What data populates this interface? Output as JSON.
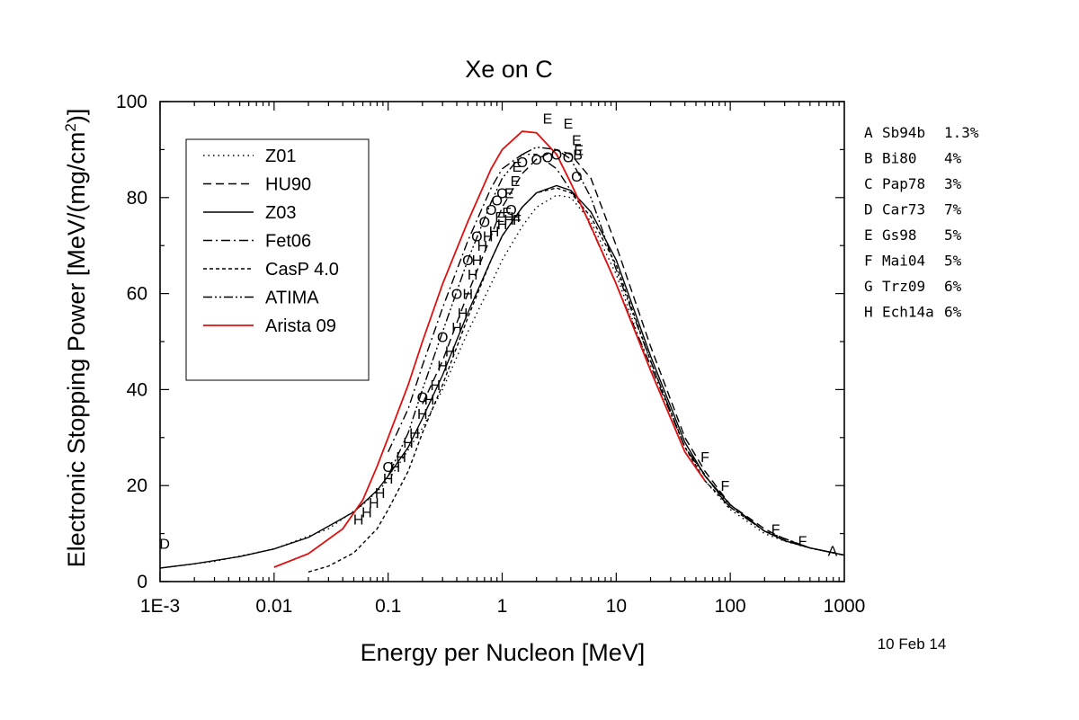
{
  "chart_data": {
    "type": "line",
    "title": "Xe on C",
    "xlabel": "Energy per Nucleon [MeV]",
    "ylabel_main": "Electronic Stopping Power [MeV/(mg/cm",
    "ylabel_sup": "2",
    "ylabel_end": ")]",
    "x_scale": "log",
    "xlim": [
      0.001,
      1000
    ],
    "ylim": [
      0,
      100
    ],
    "x_ticks": [
      {
        "value": 0.001,
        "label": "1E-3"
      },
      {
        "value": 0.01,
        "label": "0.01"
      },
      {
        "value": 0.1,
        "label": "0.1"
      },
      {
        "value": 1,
        "label": "1"
      },
      {
        "value": 10,
        "label": "10"
      },
      {
        "value": 100,
        "label": "100"
      },
      {
        "value": 1000,
        "label": "1000"
      }
    ],
    "y_ticks": [
      {
        "value": 0,
        "label": "0"
      },
      {
        "value": 20,
        "label": "20"
      },
      {
        "value": 40,
        "label": "40"
      },
      {
        "value": 60,
        "label": "60"
      },
      {
        "value": 80,
        "label": "80"
      },
      {
        "value": 100,
        "label": "100"
      }
    ],
    "legend_position": "top-left",
    "series": [
      {
        "name": "Z01",
        "style": "dotted",
        "color": "#000000",
        "points": [
          [
            0.001,
            2.8
          ],
          [
            0.003,
            4.2
          ],
          [
            0.01,
            6.8
          ],
          [
            0.03,
            11
          ],
          [
            0.06,
            16
          ],
          [
            0.1,
            21
          ],
          [
            0.2,
            32
          ],
          [
            0.3,
            40
          ],
          [
            0.5,
            52
          ],
          [
            0.8,
            62
          ],
          [
            1,
            67
          ],
          [
            1.5,
            74
          ],
          [
            2,
            78
          ],
          [
            3,
            80.5
          ],
          [
            4,
            80
          ],
          [
            6,
            75
          ],
          [
            10,
            64
          ],
          [
            20,
            44
          ],
          [
            40,
            27
          ],
          [
            60,
            21
          ],
          [
            100,
            15
          ],
          [
            200,
            10
          ],
          [
            300,
            8.4
          ],
          [
            500,
            7
          ],
          [
            1000,
            5.5
          ]
        ]
      },
      {
        "name": "HU90",
        "style": "dashed",
        "color": "#000000",
        "points": [
          [
            0.2,
            37
          ],
          [
            0.3,
            46
          ],
          [
            0.5,
            60
          ],
          [
            0.8,
            72
          ],
          [
            1,
            78
          ],
          [
            1.5,
            85
          ],
          [
            2,
            88
          ],
          [
            3,
            90
          ],
          [
            4,
            89
          ],
          [
            6,
            84
          ],
          [
            10,
            70
          ],
          [
            20,
            49
          ],
          [
            40,
            30
          ],
          [
            60,
            23
          ],
          [
            100,
            16
          ],
          [
            200,
            11
          ],
          [
            300,
            8.8
          ],
          [
            500,
            7
          ],
          [
            1000,
            5.5
          ]
        ]
      },
      {
        "name": "Z03",
        "style": "solid",
        "color": "#000000",
        "points": [
          [
            0.001,
            2.8
          ],
          [
            0.002,
            3.7
          ],
          [
            0.005,
            5.2
          ],
          [
            0.01,
            6.8
          ],
          [
            0.02,
            9.2
          ],
          [
            0.05,
            14.5
          ],
          [
            0.08,
            19
          ],
          [
            0.1,
            22
          ],
          [
            0.15,
            28
          ],
          [
            0.2,
            34
          ],
          [
            0.3,
            43
          ],
          [
            0.5,
            56
          ],
          [
            0.8,
            67
          ],
          [
            1,
            72
          ],
          [
            1.5,
            78
          ],
          [
            2,
            81
          ],
          [
            3,
            82.5
          ],
          [
            4,
            81.5
          ],
          [
            6,
            77
          ],
          [
            10,
            67
          ],
          [
            20,
            47
          ],
          [
            40,
            29
          ],
          [
            60,
            22
          ],
          [
            100,
            16
          ],
          [
            200,
            10.5
          ],
          [
            300,
            8.5
          ],
          [
            500,
            7
          ],
          [
            1000,
            5.5
          ]
        ]
      },
      {
        "name": "Fet06",
        "style": "dashdot",
        "color": "#000000",
        "points": [
          [
            0.1,
            27
          ],
          [
            0.15,
            36
          ],
          [
            0.2,
            45
          ],
          [
            0.3,
            57
          ],
          [
            0.5,
            71
          ],
          [
            0.8,
            82
          ],
          [
            1,
            86
          ],
          [
            1.5,
            89
          ],
          [
            2,
            89
          ],
          [
            3,
            86
          ],
          [
            5,
            78
          ],
          [
            10,
            62
          ],
          [
            20,
            45
          ],
          [
            40,
            28
          ],
          [
            100,
            15
          ]
        ]
      },
      {
        "name": "CasP 4.0",
        "style": "shortdash",
        "color": "#000000",
        "points": [
          [
            0.02,
            2
          ],
          [
            0.03,
            3.2
          ],
          [
            0.05,
            6
          ],
          [
            0.08,
            11
          ],
          [
            0.1,
            15
          ],
          [
            0.15,
            23
          ],
          [
            0.2,
            31
          ],
          [
            0.3,
            41
          ],
          [
            0.5,
            55
          ],
          [
            0.8,
            67
          ],
          [
            1,
            72
          ],
          [
            1.5,
            78
          ],
          [
            2,
            81
          ],
          [
            3,
            82
          ],
          [
            4,
            81
          ],
          [
            6,
            76
          ],
          [
            10,
            66
          ],
          [
            20,
            46
          ],
          [
            40,
            28
          ],
          [
            60,
            21
          ],
          [
            100,
            15.5
          ],
          [
            200,
            10.5
          ],
          [
            500,
            7
          ],
          [
            1000,
            5.5
          ]
        ]
      },
      {
        "name": "ATIMA",
        "style": "dashdotdot",
        "color": "#000000",
        "points": [
          [
            0.1,
            22
          ],
          [
            0.15,
            31
          ],
          [
            0.2,
            40
          ],
          [
            0.3,
            52
          ],
          [
            0.5,
            67
          ],
          [
            0.8,
            79
          ],
          [
            1,
            84
          ],
          [
            1.5,
            89
          ],
          [
            2,
            90.5
          ],
          [
            3,
            90
          ],
          [
            4,
            88
          ],
          [
            6,
            80
          ],
          [
            10,
            65
          ],
          [
            20,
            46
          ],
          [
            40,
            28
          ],
          [
            60,
            22
          ],
          [
            100,
            15.5
          ],
          [
            200,
            10.5
          ],
          [
            500,
            7
          ],
          [
            1000,
            5.5
          ]
        ]
      },
      {
        "name": "Arista 09",
        "style": "solid",
        "color": "#e01010",
        "points": [
          [
            0.01,
            3
          ],
          [
            0.02,
            5.8
          ],
          [
            0.04,
            11
          ],
          [
            0.06,
            17
          ],
          [
            0.08,
            24
          ],
          [
            0.1,
            30
          ],
          [
            0.15,
            41
          ],
          [
            0.2,
            50
          ],
          [
            0.3,
            62
          ],
          [
            0.5,
            75
          ],
          [
            0.8,
            86
          ],
          [
            1,
            90
          ],
          [
            1.5,
            93.8
          ],
          [
            2,
            93.5
          ],
          [
            3,
            89
          ],
          [
            4,
            83
          ],
          [
            6,
            74
          ],
          [
            10,
            62
          ],
          [
            20,
            44
          ],
          [
            40,
            27
          ],
          [
            60,
            21
          ]
        ]
      }
    ],
    "points_markers": [
      {
        "label": "D",
        "x": 0.0011,
        "y": 8
      },
      {
        "label": "H",
        "x": 0.055,
        "y": 13
      },
      {
        "label": "H",
        "x": 0.065,
        "y": 14.5
      },
      {
        "label": "H",
        "x": 0.075,
        "y": 16.5
      },
      {
        "label": "H",
        "x": 0.085,
        "y": 18.5
      },
      {
        "label": "H",
        "x": 0.1,
        "y": 21.5
      },
      {
        "label": "H",
        "x": 0.115,
        "y": 24
      },
      {
        "label": "H",
        "x": 0.13,
        "y": 26
      },
      {
        "label": "H",
        "x": 0.15,
        "y": 29
      },
      {
        "label": "H",
        "x": 0.17,
        "y": 31
      },
      {
        "label": "H",
        "x": 0.2,
        "y": 35
      },
      {
        "label": "H",
        "x": 0.23,
        "y": 38
      },
      {
        "label": "H",
        "x": 0.26,
        "y": 41
      },
      {
        "label": "H",
        "x": 0.3,
        "y": 45
      },
      {
        "label": "H",
        "x": 0.35,
        "y": 48
      },
      {
        "label": "H",
        "x": 0.4,
        "y": 53
      },
      {
        "label": "H",
        "x": 0.45,
        "y": 56
      },
      {
        "label": "H",
        "x": 0.5,
        "y": 60
      },
      {
        "label": "H",
        "x": 0.55,
        "y": 64
      },
      {
        "label": "H",
        "x": 0.6,
        "y": 67
      },
      {
        "label": "H",
        "x": 0.67,
        "y": 70
      },
      {
        "label": "H",
        "x": 0.75,
        "y": 72
      },
      {
        "label": "H",
        "x": 0.85,
        "y": 73
      },
      {
        "label": "H",
        "x": 1,
        "y": 74.5
      },
      {
        "label": "H",
        "x": 1.15,
        "y": 75.5
      },
      {
        "label": "H",
        "x": 1.3,
        "y": 76
      },
      {
        "label": "G",
        "x": 0.1,
        "y": 24
      },
      {
        "label": "G",
        "x": 0.2,
        "y": 38.5
      },
      {
        "label": "G",
        "x": 0.3,
        "y": 51
      },
      {
        "label": "G",
        "x": 0.4,
        "y": 60
      },
      {
        "label": "G",
        "x": 0.5,
        "y": 67
      },
      {
        "label": "G",
        "x": 0.6,
        "y": 72
      },
      {
        "label": "G",
        "x": 0.7,
        "y": 75
      },
      {
        "label": "G",
        "x": 0.8,
        "y": 77.5
      },
      {
        "label": "G",
        "x": 0.9,
        "y": 79.5
      },
      {
        "label": "G",
        "x": 1,
        "y": 81
      },
      {
        "label": "G",
        "x": 1.2,
        "y": 77.5
      },
      {
        "label": "G",
        "x": 1.5,
        "y": 87.5
      },
      {
        "label": "G",
        "x": 2,
        "y": 88
      },
      {
        "label": "G",
        "x": 2.5,
        "y": 88.5
      },
      {
        "label": "G",
        "x": 3,
        "y": 89
      },
      {
        "label": "G",
        "x": 3.8,
        "y": 88.5
      },
      {
        "label": "G",
        "x": 4.5,
        "y": 84.5
      },
      {
        "label": "E",
        "x": 0.95,
        "y": 76
      },
      {
        "label": "E",
        "x": 1.1,
        "y": 77
      },
      {
        "label": "E",
        "x": 1.15,
        "y": 81
      },
      {
        "label": "E",
        "x": 1.3,
        "y": 83.5
      },
      {
        "label": "E",
        "x": 1.35,
        "y": 86.5
      },
      {
        "label": "E",
        "x": 2.5,
        "y": 96.5
      },
      {
        "label": "E",
        "x": 3.8,
        "y": 95.5
      },
      {
        "label": "E",
        "x": 4.5,
        "y": 92
      },
      {
        "label": "E",
        "x": 4.7,
        "y": 90
      },
      {
        "label": "B",
        "x": 4.6,
        "y": 89
      },
      {
        "label": "F",
        "x": 1.35,
        "y": 75.5
      },
      {
        "label": "F",
        "x": 60,
        "y": 26
      },
      {
        "label": "F",
        "x": 90,
        "y": 20
      },
      {
        "label": "F",
        "x": 250,
        "y": 11
      },
      {
        "label": "F",
        "x": 430,
        "y": 8.5
      },
      {
        "label": "A",
        "x": 790,
        "y": 6.5
      }
    ],
    "references": [
      {
        "letter": "A",
        "label": "Sb94b",
        "error": "1.3%"
      },
      {
        "letter": "B",
        "label": "Bi80",
        "error": "4%"
      },
      {
        "letter": "C",
        "label": "Pap78",
        "error": "3%"
      },
      {
        "letter": "D",
        "label": "Car73",
        "error": "7%"
      },
      {
        "letter": "E",
        "label": "Gs98",
        "error": "5%"
      },
      {
        "letter": "F",
        "label": "Mai04",
        "error": "5%"
      },
      {
        "letter": "G",
        "label": "Trz09",
        "error": "6%"
      },
      {
        "letter": "H",
        "label": "Ech14a",
        "error": "6%"
      }
    ],
    "date": "10 Feb 14"
  }
}
